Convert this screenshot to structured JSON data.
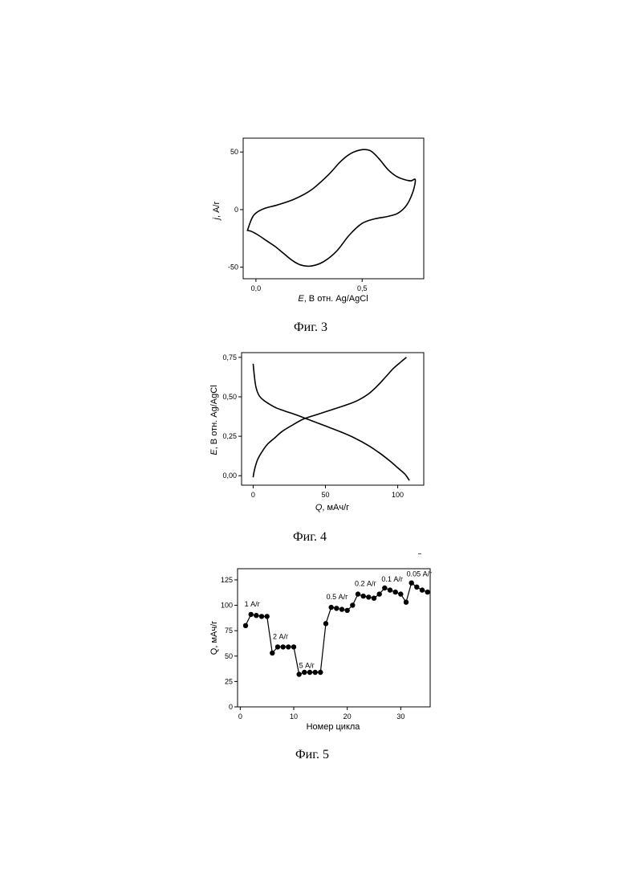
{
  "figures": [
    {
      "caption": "Фиг. 3",
      "chart_data": {
        "type": "line",
        "xlabel_italic": "E",
        "xlabel_rest": ", В отн. Ag/AgCl",
        "ylabel_italic": "j",
        "ylabel_rest": ", А/г",
        "x_ticks": [
          "0,0",
          "0,5"
        ],
        "x_tick_values": [
          0.0,
          0.5
        ],
        "y_ticks": [
          "50",
          "0",
          "-50"
        ],
        "y_tick_values": [
          50,
          0,
          -50
        ],
        "xlim": [
          -0.06,
          0.79
        ],
        "ylim": [
          -60,
          62
        ],
        "series": [
          {
            "x": [
              -0.04,
              -0.02,
              0.0,
              0.04,
              0.1,
              0.18,
              0.26,
              0.34,
              0.4,
              0.45,
              0.5,
              0.54,
              0.58,
              0.62,
              0.66,
              0.7,
              0.73,
              0.75,
              0.74,
              0.71,
              0.67,
              0.62,
              0.56,
              0.5,
              0.44,
              0.38,
              0.32,
              0.26,
              0.21,
              0.17,
              0.13,
              0.09,
              0.05,
              0.01,
              -0.02,
              -0.04
            ],
            "y": [
              -18,
              -8,
              -3,
              1,
              4,
              9,
              17,
              30,
              42,
              49,
              52,
              51,
              44,
              35,
              29,
              26,
              25,
              26,
              16,
              4,
              -3,
              -6,
              -8,
              -12,
              -22,
              -36,
              -45,
              -49,
              -48,
              -44,
              -38,
              -32,
              -27,
              -22,
              -19,
              -18
            ]
          }
        ]
      }
    },
    {
      "caption": "Фиг. 4",
      "chart_data": {
        "type": "line",
        "xlabel_italic": "Q",
        "xlabel_rest": ", мАч/г",
        "ylabel_italic": "E",
        "ylabel_rest": ", В отн. Ag/AgCl",
        "x_ticks": [
          "0",
          "50",
          "100"
        ],
        "x_tick_values": [
          0,
          50,
          100
        ],
        "y_ticks": [
          "0,75",
          "0,50",
          "0,25",
          "0,00"
        ],
        "y_tick_values": [
          0.75,
          0.5,
          0.25,
          0.0
        ],
        "xlim": [
          -8,
          118
        ],
        "ylim": [
          -0.06,
          0.78
        ],
        "series": [
          {
            "x": [
              0,
              1,
              2,
              4,
              7,
              11,
              16,
              22,
              30,
              40,
              50,
              60,
              70,
              80,
              88,
              95,
              100,
              105,
              108
            ],
            "y": [
              0.71,
              0.62,
              0.56,
              0.51,
              0.48,
              0.455,
              0.43,
              0.41,
              0.385,
              0.35,
              0.315,
              0.28,
              0.24,
              0.19,
              0.14,
              0.09,
              0.05,
              0.01,
              -0.03
            ]
          },
          {
            "x": [
              0,
              1,
              3,
              6,
              10,
              15,
              20,
              27,
              35,
              45,
              55,
              65,
              73,
              80,
              86,
              92,
              97,
              102,
              106
            ],
            "y": [
              -0.01,
              0.04,
              0.1,
              0.15,
              0.2,
              0.24,
              0.28,
              0.32,
              0.36,
              0.39,
              0.42,
              0.45,
              0.48,
              0.52,
              0.57,
              0.63,
              0.68,
              0.72,
              0.75
            ]
          }
        ]
      }
    },
    {
      "caption": "Фиг. 5",
      "chart_data": {
        "type": "scatter",
        "xlabel": "Номер цикла",
        "ylabel": "Q, мАч/г",
        "x_ticks": [
          "0",
          "10",
          "20",
          "30"
        ],
        "x_tick_values": [
          0,
          10,
          20,
          30
        ],
        "y_ticks": [
          "0",
          "25",
          "50",
          "75",
          "100",
          "125"
        ],
        "y_tick_values": [
          0,
          25,
          50,
          75,
          100,
          125
        ],
        "xlim": [
          -0.5,
          35.5
        ],
        "ylim": [
          0,
          136
        ],
        "series": [
          {
            "x": [
              1,
              2,
              3,
              4,
              5,
              6,
              7,
              8,
              9,
              10,
              11,
              12,
              13,
              14,
              15,
              16,
              17,
              18,
              19,
              20,
              21,
              22,
              23,
              24,
              25,
              26,
              27,
              28,
              29,
              30,
              31,
              32,
              33,
              34,
              35
            ],
            "y": [
              80,
              91,
              90,
              89,
              89,
              53,
              59,
              59,
              59,
              59,
              32,
              34,
              34,
              34,
              34,
              82,
              98,
              97,
              96,
              95,
              100,
              111,
              109,
              108,
              107,
              111,
              117,
              115,
              113,
              111,
              103,
              122,
              118,
              115,
              113
            ]
          }
        ],
        "annotations": [
          "1 А/г",
          "2 А/г",
          "5 А/г",
          "0.5 А/г",
          "0.2 А/г",
          "0.1 А/г",
          "0.05 А/г"
        ]
      }
    }
  ]
}
